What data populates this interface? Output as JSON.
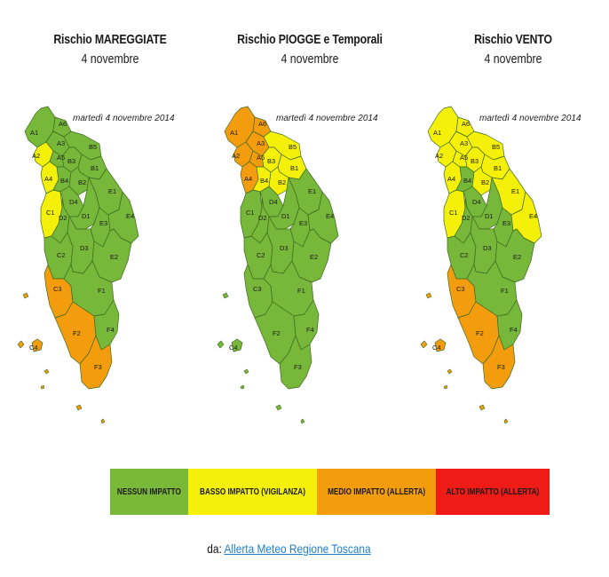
{
  "panels": [
    {
      "title": "Rischio MAREGGIATE",
      "date": "4 novembre",
      "map_date": "martedì 4 novembre 2014",
      "zones": {
        "A1": "green",
        "A2": "yellow",
        "A3": "green",
        "A4": "yellow",
        "A5": "green",
        "A6": "green",
        "B1": "green",
        "B2": "green",
        "B3": "green",
        "B4": "green",
        "B5": "green",
        "C1": "yellow",
        "C2": "green",
        "C3": "orange",
        "C4": "orange",
        "D1": "green",
        "D2": "green",
        "D3": "green",
        "D4": "green",
        "E1": "green",
        "E2": "green",
        "E3": "green",
        "E4": "green",
        "F1": "green",
        "F2": "orange",
        "F3": "orange",
        "F4": "green"
      }
    },
    {
      "title": "Rischio PIOGGE e Temporali",
      "date": "4 novembre",
      "map_date": "martedì 4 novembre 2014",
      "zones": {
        "A1": "orange",
        "A2": "orange",
        "A3": "orange",
        "A4": "orange",
        "A5": "orange",
        "A6": "orange",
        "B1": "yellow",
        "B2": "yellow",
        "B3": "yellow",
        "B4": "yellow",
        "B5": "yellow",
        "C1": "green",
        "C2": "green",
        "C3": "green",
        "C4": "green",
        "D1": "green",
        "D2": "green",
        "D3": "green",
        "D4": "green",
        "E1": "green",
        "E2": "green",
        "E3": "green",
        "E4": "green",
        "F1": "green",
        "F2": "green",
        "F3": "green",
        "F4": "green"
      }
    },
    {
      "title": "Rischio VENTO",
      "date": "4 novembre",
      "map_date": "martedì 4 novembre 2014",
      "zones": {
        "A1": "yellow",
        "A2": "yellow",
        "A3": "yellow",
        "A4": "yellow",
        "A5": "yellow",
        "A6": "yellow",
        "B1": "yellow",
        "B2": "yellow",
        "B3": "yellow",
        "B4": "green",
        "B5": "yellow",
        "C1": "yellow",
        "C2": "green",
        "C3": "orange",
        "C4": "orange",
        "D1": "green",
        "D2": "green",
        "D3": "green",
        "D4": "green",
        "E1": "yellow",
        "E2": "green",
        "E3": "green",
        "E4": "yellow",
        "F1": "green",
        "F2": "orange",
        "F3": "orange",
        "F4": "green"
      }
    }
  ],
  "colors": {
    "green": "#77b73a",
    "yellow": "#f4f00a",
    "orange": "#f39c0d",
    "red": "#ef1b16",
    "border": "#3d6a20"
  },
  "legend": [
    {
      "label": "NESSUN IMPATTO",
      "color": "#7ab83a"
    },
    {
      "label": "BASSO IMPATTO (VIGILANZA)",
      "color": "#f4f00a"
    },
    {
      "label": "MEDIO IMPATTO (ALLERTA)",
      "color": "#f39c0d"
    },
    {
      "label": "ALTO IMPATTO (ALLERTA)",
      "color": "#ef1b16"
    }
  ],
  "credit": {
    "prefix": "da:",
    "link_text": "Allerta Meteo Regione Toscana"
  }
}
